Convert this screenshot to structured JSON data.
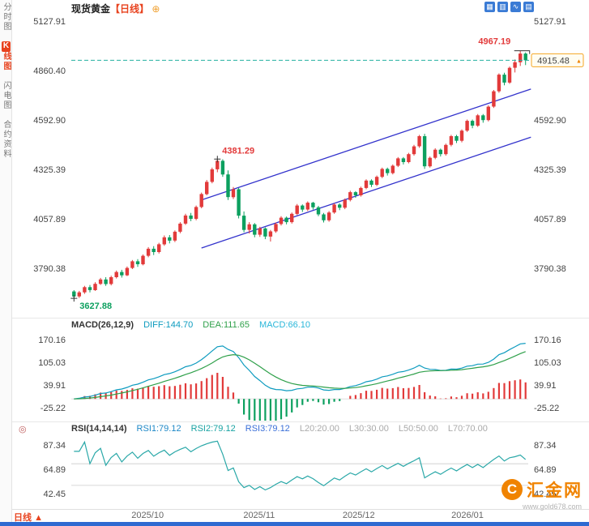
{
  "sidebar": {
    "items": [
      {
        "key": "time",
        "label": "分时图",
        "active": false
      },
      {
        "key": "kline",
        "label": "K线图",
        "active": true
      },
      {
        "key": "flash",
        "label": "闪电图",
        "active": false
      },
      {
        "key": "contract",
        "label": "合约资料",
        "active": false
      }
    ]
  },
  "header": {
    "title": "现货黄金",
    "period": "【日线】",
    "gear_glyph": "⊕"
  },
  "toolbar": {
    "icons": [
      {
        "key": "grid",
        "glyph": "▦"
      },
      {
        "key": "candle",
        "glyph": "▥"
      },
      {
        "key": "line",
        "glyph": "∿"
      },
      {
        "key": "panel",
        "glyph": "▤"
      }
    ]
  },
  "macd_header": {
    "label": "MACD(26,12,9)",
    "diff": "DIFF:144.70",
    "dea": "DEA:111.65",
    "macd": "MACD:66.10"
  },
  "rsi_header": {
    "label": "RSI(14,14,14)",
    "rsi1": "RSI1:79.12",
    "rsi2": "RSI2:79.12",
    "rsi3": "RSI3:79.12",
    "l20": "L20:20.00",
    "l30": "L30:30.00",
    "l50": "L50:50.00",
    "l70": "L70:70.00",
    "gear_glyph": "◎"
  },
  "time_axis": {
    "period": "日线",
    "period_arrow": "▲",
    "labels": [
      {
        "text": "2025/10",
        "pos": 0.167
      },
      {
        "text": "2025/11",
        "pos": 0.411
      },
      {
        "text": "2025/12",
        "pos": 0.629
      },
      {
        "text": "2026/01",
        "pos": 0.867
      }
    ]
  },
  "watermark": {
    "logo_glyph": "C",
    "name": "汇金网",
    "url": "www.gold678.com"
  },
  "colors": {
    "up": "#e23a3a",
    "down": "#0ca05f",
    "diff": "#0d9bbf",
    "dea": "#2fa04a",
    "rsi": "#2aa8a8",
    "channel": "#3333cc",
    "dashed": "#23b0a0",
    "tag_border": "#f5a623",
    "accent": "#e8431f",
    "watermark": "#f08300",
    "blue_strip": "#2e6ad1"
  },
  "chart_data": {
    "type": "candlestick",
    "title": "现货黄金 日线",
    "y_axis_ticks": [
      5127.91,
      4860.4,
      4592.9,
      4325.39,
      4057.89,
      3790.38
    ],
    "x_labels": [
      "2025/10",
      "2025/11",
      "2025/12",
      "2026/01"
    ],
    "current_price": 4915.48,
    "annotations": {
      "high": 4967.19,
      "peak": 4381.29,
      "low": 3627.88
    },
    "peak_index": 27,
    "low_index": 0,
    "channel": {
      "lower": [
        [
          24,
          3900
        ],
        [
          86,
          4500
        ]
      ],
      "upper": [
        [
          24,
          4160
        ],
        [
          86,
          4760
        ]
      ]
    },
    "indicators": {
      "macd": {
        "params": [
          26,
          12,
          9
        ],
        "diff": 144.7,
        "dea": 111.65,
        "macd": 66.1,
        "axis": [
          170.16,
          105.03,
          39.91,
          -25.22
        ]
      },
      "rsi": {
        "params": [
          14,
          14,
          14
        ],
        "rsi1": 79.12,
        "rsi2": 79.12,
        "rsi3": 79.12,
        "axis": [
          87.34,
          64.89,
          42.45
        ],
        "levels": [
          70,
          50
        ]
      }
    },
    "candles_ohlc": [
      [
        3665,
        3672,
        3627.9,
        3638
      ],
      [
        3638,
        3668,
        3630,
        3660
      ],
      [
        3660,
        3695,
        3652,
        3688
      ],
      [
        3688,
        3700,
        3660,
        3672
      ],
      [
        3672,
        3715,
        3668,
        3706
      ],
      [
        3706,
        3738,
        3700,
        3730
      ],
      [
        3730,
        3742,
        3695,
        3705
      ],
      [
        3705,
        3750,
        3698,
        3742
      ],
      [
        3742,
        3778,
        3735,
        3770
      ],
      [
        3770,
        3782,
        3740,
        3752
      ],
      [
        3752,
        3800,
        3748,
        3792
      ],
      [
        3792,
        3835,
        3786,
        3828
      ],
      [
        3828,
        3840,
        3798,
        3812
      ],
      [
        3812,
        3865,
        3806,
        3858
      ],
      [
        3858,
        3905,
        3850,
        3896
      ],
      [
        3896,
        3910,
        3862,
        3878
      ],
      [
        3878,
        3928,
        3870,
        3920
      ],
      [
        3920,
        3968,
        3912,
        3958
      ],
      [
        3958,
        3970,
        3925,
        3940
      ],
      [
        3940,
        3995,
        3932,
        3988
      ],
      [
        3988,
        4040,
        3980,
        4032
      ],
      [
        4032,
        4085,
        4025,
        4076
      ],
      [
        4076,
        4090,
        4045,
        4058
      ],
      [
        4058,
        4130,
        4050,
        4122
      ],
      [
        4122,
        4200,
        4115,
        4192
      ],
      [
        4192,
        4268,
        4185,
        4258
      ],
      [
        4258,
        4335,
        4250,
        4326
      ],
      [
        4326,
        4381.3,
        4310,
        4372
      ],
      [
        4372,
        4380,
        4285,
        4298
      ],
      [
        4298,
        4320,
        4160,
        4175
      ],
      [
        4175,
        4230,
        4165,
        4218
      ],
      [
        4218,
        4225,
        4060,
        4075
      ],
      [
        4075,
        4098,
        3985,
        3998
      ],
      [
        3998,
        4040,
        3978,
        4028
      ],
      [
        4028,
        4035,
        3958,
        3972
      ],
      [
        3972,
        4015,
        3960,
        4006
      ],
      [
        4006,
        4012,
        3948,
        3962
      ],
      [
        3962,
        3998,
        3935,
        3990
      ],
      [
        3990,
        4038,
        3982,
        4030
      ],
      [
        4030,
        4072,
        4022,
        4064
      ],
      [
        4064,
        4070,
        4028,
        4040
      ],
      [
        4040,
        4092,
        4032,
        4085
      ],
      [
        4085,
        4138,
        4078,
        4130
      ],
      [
        4130,
        4136,
        4095,
        4108
      ],
      [
        4108,
        4152,
        4100,
        4145
      ],
      [
        4145,
        4150,
        4108,
        4120
      ],
      [
        4120,
        4128,
        4072,
        4082
      ],
      [
        4082,
        4090,
        4038,
        4050
      ],
      [
        4050,
        4100,
        4042,
        4092
      ],
      [
        4092,
        4142,
        4085,
        4135
      ],
      [
        4135,
        4142,
        4105,
        4118
      ],
      [
        4118,
        4168,
        4110,
        4160
      ],
      [
        4160,
        4210,
        4152,
        4202
      ],
      [
        4202,
        4208,
        4172,
        4185
      ],
      [
        4185,
        4232,
        4178,
        4225
      ],
      [
        4225,
        4272,
        4218,
        4265
      ],
      [
        4265,
        4272,
        4230,
        4242
      ],
      [
        4242,
        4292,
        4235,
        4285
      ],
      [
        4285,
        4335,
        4278,
        4328
      ],
      [
        4328,
        4335,
        4292,
        4305
      ],
      [
        4305,
        4352,
        4298,
        4345
      ],
      [
        4345,
        4392,
        4338,
        4385
      ],
      [
        4385,
        4392,
        4352,
        4365
      ],
      [
        4365,
        4415,
        4358,
        4408
      ],
      [
        4408,
        4458,
        4400,
        4450
      ],
      [
        4450,
        4512,
        4442,
        4505
      ],
      [
        4505,
        4518,
        4328,
        4342
      ],
      [
        4342,
        4395,
        4335,
        4388
      ],
      [
        4388,
        4440,
        4380,
        4432
      ],
      [
        4432,
        4438,
        4395,
        4408
      ],
      [
        4408,
        4465,
        4400,
        4458
      ],
      [
        4458,
        4512,
        4450,
        4505
      ],
      [
        4505,
        4512,
        4468,
        4480
      ],
      [
        4480,
        4542,
        4472,
        4535
      ],
      [
        4535,
        4595,
        4528,
        4588
      ],
      [
        4588,
        4595,
        4548,
        4562
      ],
      [
        4562,
        4625,
        4555,
        4618
      ],
      [
        4618,
        4625,
        4578,
        4592
      ],
      [
        4592,
        4672,
        4585,
        4665
      ],
      [
        4665,
        4755,
        4658,
        4748
      ],
      [
        4748,
        4845,
        4740,
        4838
      ],
      [
        4838,
        4848,
        4780,
        4795
      ],
      [
        4795,
        4882,
        4788,
        4875
      ],
      [
        4875,
        4920,
        4850,
        4905
      ],
      [
        4905,
        4967.2,
        4885,
        4952
      ],
      [
        4952,
        4958,
        4890,
        4915.5
      ]
    ]
  }
}
